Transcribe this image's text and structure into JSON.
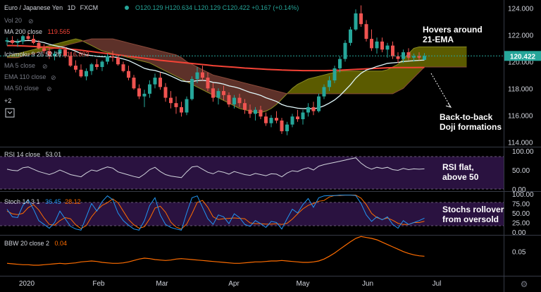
{
  "header": {
    "symbol": "Euro / Japanese Yen",
    "interval": "1D",
    "source": "FXCM",
    "ohlc": "O120.129 H120.634 L120.129 C120.422 +0.167 (+0.14%)"
  },
  "legend": {
    "vol": "Vol 20",
    "ma200_label": "MA 200 close",
    "ma200_value": "119.565",
    "ichimoku_label": "Ichimoku 9 26 52 26",
    "ichimoku_value": "116.893",
    "ma5": "MA 5 close",
    "ema110": "EMA 110 close",
    "ma50": "MA 50 close",
    "more": "+2"
  },
  "price_axis": {
    "ticks": [
      "124.000",
      "122.000",
      "120.000",
      "118.000",
      "116.000",
      "114.000"
    ],
    "last_price": "120.422"
  },
  "time_axis": [
    "2020",
    "Feb",
    "Mar",
    "Apr",
    "May",
    "Jun",
    "Jul"
  ],
  "annotations": {
    "hover_line1": "Hovers around",
    "hover_line2": "21-EMA",
    "doji_line1": "Back-to-back",
    "doji_line2": "Doji formations",
    "rsi_line1": "RSI flat,",
    "rsi_line2": "above 50",
    "stoch_line1": "Stochs rollover",
    "stoch_line2": "from oversold"
  },
  "rsi": {
    "label": "RSI 14 close",
    "value": "53.01",
    "ticks": [
      "100.00",
      "50.00",
      "0.00"
    ]
  },
  "stoch": {
    "label": "Stoch 14 3 1",
    "k": "36.45",
    "d": "28.12",
    "ticks": [
      "100.00",
      "75.00",
      "50.00",
      "25.00",
      "0.00"
    ]
  },
  "bbw": {
    "label": "BBW 20 close 2",
    "value": "0.04",
    "ticks": [
      "0.05"
    ]
  },
  "colors": {
    "up": "#26a69a",
    "down": "#ef5350",
    "ma200": "#f44336",
    "ema21": "#e0f7fa",
    "cloud_green": "#6b6b00",
    "cloud_red": "#6d3a30",
    "osc_band": "#2a1240",
    "rsi_line": "#d1d4dc",
    "stoch_k": "#2196f3",
    "stoch_d": "#ff6d00",
    "bbw_line": "#ff6d00"
  },
  "chart_data": {
    "type": "candlestick",
    "symbol": "Euro / Japanese Yen",
    "interval": "1D",
    "candles": [
      [
        121.5,
        121.8,
        121.2,
        121.6
      ],
      [
        121.6,
        121.9,
        121.3,
        121.4
      ],
      [
        121.4,
        121.7,
        121.1,
        121.5
      ],
      [
        121.5,
        122.0,
        121.3,
        121.9
      ],
      [
        121.9,
        122.2,
        121.6,
        121.7
      ],
      [
        121.7,
        122.0,
        121.3,
        121.4
      ],
      [
        121.4,
        121.6,
        120.9,
        121.0
      ],
      [
        121.0,
        121.3,
        120.6,
        120.8
      ],
      [
        120.8,
        121.1,
        120.2,
        120.4
      ],
      [
        120.4,
        120.8,
        120.1,
        120.6
      ],
      [
        120.6,
        121.0,
        120.3,
        120.9
      ],
      [
        120.9,
        121.1,
        120.3,
        120.4
      ],
      [
        120.4,
        120.7,
        119.6,
        119.7
      ],
      [
        119.7,
        120.1,
        119.2,
        119.4
      ],
      [
        119.4,
        119.8,
        118.8,
        118.9
      ],
      [
        118.9,
        119.5,
        118.6,
        119.3
      ],
      [
        119.3,
        119.9,
        119.0,
        119.8
      ],
      [
        119.8,
        120.2,
        119.4,
        119.6
      ],
      [
        119.6,
        120.1,
        119.3,
        120.0
      ],
      [
        120.0,
        120.6,
        119.8,
        120.4
      ],
      [
        120.4,
        120.8,
        120.0,
        120.3
      ],
      [
        120.3,
        120.5,
        119.7,
        119.8
      ],
      [
        119.8,
        120.0,
        119.2,
        119.3
      ],
      [
        119.3,
        119.7,
        118.6,
        118.8
      ],
      [
        118.8,
        119.0,
        117.9,
        118.0
      ],
      [
        118.0,
        118.3,
        117.2,
        117.4
      ],
      [
        117.4,
        117.9,
        116.6,
        117.6
      ],
      [
        117.6,
        118.6,
        117.3,
        118.3
      ],
      [
        118.3,
        119.1,
        118.0,
        118.8
      ],
      [
        118.8,
        119.2,
        117.9,
        118.1
      ],
      [
        118.1,
        118.4,
        117.0,
        117.3
      ],
      [
        117.3,
        117.8,
        116.5,
        116.9
      ],
      [
        116.9,
        117.4,
        116.1,
        116.6
      ],
      [
        116.6,
        117.0,
        115.9,
        116.2
      ],
      [
        116.2,
        117.4,
        116.0,
        117.2
      ],
      [
        117.2,
        118.9,
        117.1,
        118.7
      ],
      [
        118.7,
        119.6,
        118.4,
        119.2
      ],
      [
        119.2,
        119.7,
        118.6,
        118.8
      ],
      [
        118.8,
        119.2,
        117.8,
        118.0
      ],
      [
        118.0,
        118.4,
        117.0,
        117.3
      ],
      [
        117.3,
        118.0,
        116.8,
        117.8
      ],
      [
        117.8,
        118.2,
        117.1,
        117.5
      ],
      [
        117.5,
        117.7,
        116.6,
        116.8
      ],
      [
        116.8,
        117.5,
        116.5,
        117.3
      ],
      [
        117.3,
        117.6,
        116.6,
        116.9
      ],
      [
        116.9,
        117.2,
        116.1,
        116.4
      ],
      [
        116.4,
        116.8,
        115.8,
        116.1
      ],
      [
        116.1,
        116.6,
        115.6,
        116.4
      ],
      [
        116.4,
        116.7,
        115.7,
        115.9
      ],
      [
        115.9,
        116.2,
        115.2,
        115.4
      ],
      [
        115.4,
        116.0,
        115.1,
        115.8
      ],
      [
        115.8,
        116.3,
        115.4,
        115.6
      ],
      [
        115.6,
        115.8,
        114.6,
        114.8
      ],
      [
        114.8,
        115.5,
        114.5,
        115.3
      ],
      [
        115.3,
        116.1,
        115.1,
        115.9
      ],
      [
        115.9,
        116.4,
        115.5,
        115.7
      ],
      [
        115.7,
        116.4,
        115.3,
        116.2
      ],
      [
        116.2,
        116.9,
        115.9,
        116.6
      ],
      [
        116.6,
        117.0,
        116.0,
        116.3
      ],
      [
        116.3,
        117.6,
        116.2,
        117.4
      ],
      [
        117.4,
        118.3,
        117.2,
        118.1
      ],
      [
        118.1,
        118.9,
        117.8,
        118.6
      ],
      [
        118.6,
        119.7,
        118.4,
        119.5
      ],
      [
        119.5,
        120.4,
        119.2,
        120.2
      ],
      [
        120.2,
        121.6,
        120.0,
        121.4
      ],
      [
        121.4,
        122.6,
        121.2,
        122.4
      ],
      [
        122.4,
        123.9,
        122.3,
        123.6
      ],
      [
        123.6,
        124.2,
        122.6,
        122.8
      ],
      [
        122.8,
        123.1,
        121.5,
        121.7
      ],
      [
        121.7,
        122.4,
        120.8,
        121.0
      ],
      [
        121.0,
        121.8,
        120.6,
        121.5
      ],
      [
        121.5,
        121.8,
        120.7,
        120.9
      ],
      [
        120.9,
        121.4,
        120.3,
        121.2
      ],
      [
        121.2,
        121.5,
        120.2,
        120.4
      ],
      [
        120.4,
        120.7,
        119.9,
        120.2
      ],
      [
        120.2,
        120.9,
        119.9,
        120.7
      ],
      [
        120.7,
        121.0,
        120.1,
        120.3
      ],
      [
        120.3,
        120.6,
        120.0,
        120.4
      ],
      [
        120.4,
        120.7,
        120.1,
        120.3
      ],
      [
        120.129,
        120.634,
        120.129,
        120.422
      ]
    ],
    "ema21": [
      121.5,
      121.5,
      121.5,
      121.55,
      121.58,
      121.56,
      121.5,
      121.42,
      121.3,
      121.2,
      121.12,
      121.05,
      120.92,
      120.78,
      120.6,
      120.5,
      120.45,
      120.4,
      120.36,
      120.36,
      120.35,
      120.3,
      120.2,
      120.08,
      119.9,
      119.7,
      119.5,
      119.4,
      119.34,
      119.22,
      119.1,
      118.93,
      118.75,
      118.56,
      118.5,
      118.52,
      118.58,
      118.6,
      118.56,
      118.45,
      118.4,
      118.32,
      118.19,
      118.11,
      118.0,
      117.85,
      117.7,
      117.6,
      117.48,
      117.3,
      117.17,
      117.03,
      116.8,
      116.67,
      116.6,
      116.52,
      116.49,
      116.5,
      116.47,
      116.56,
      116.7,
      116.9,
      117.14,
      117.46,
      117.86,
      118.27,
      118.76,
      119.13,
      119.37,
      119.49,
      119.64,
      119.75,
      119.87,
      119.91,
      119.94,
      120.01,
      120.04,
      120.07,
      120.09,
      120.12
    ],
    "ma200": [
      121.2,
      121.2,
      121.18,
      121.17,
      121.15,
      121.13,
      121.1,
      121.08,
      121.05,
      121.02,
      121.0,
      120.97,
      120.93,
      120.9,
      120.85,
      120.8,
      120.75,
      120.7,
      120.65,
      120.6,
      120.55,
      120.5,
      120.45,
      120.4,
      120.35,
      120.3,
      120.25,
      120.2,
      120.15,
      120.1,
      120.06,
      120.02,
      119.98,
      119.94,
      119.9,
      119.86,
      119.82,
      119.78,
      119.74,
      119.7,
      119.67,
      119.64,
      119.61,
      119.58,
      119.55,
      119.52,
      119.5,
      119.47,
      119.45,
      119.43,
      119.41,
      119.39,
      119.37,
      119.36,
      119.35,
      119.34,
      119.33,
      119.33,
      119.33,
      119.33,
      119.33,
      119.34,
      119.35,
      119.36,
      119.38,
      119.4,
      119.42,
      119.44,
      119.46,
      119.48,
      119.5,
      119.52,
      119.54,
      119.55,
      119.56,
      119.56,
      119.56,
      119.56,
      119.565,
      119.565
    ],
    "cloud": {
      "span_a": [
        120.4,
        120.5,
        120.6,
        120.7,
        120.8,
        120.9,
        121.0,
        121.1,
        121.2,
        121.3,
        121.4,
        121.5,
        121.6,
        121.7,
        121.6,
        121.4,
        121.2,
        121.0,
        120.8,
        120.7,
        120.6,
        120.5,
        120.4,
        120.3,
        120.2,
        120.1,
        120.0,
        119.9,
        119.7,
        119.5,
        119.3,
        119.1,
        118.9,
        118.7,
        118.5,
        118.3,
        118.1,
        117.9,
        117.7,
        117.5,
        117.3,
        117.1,
        116.9,
        116.7,
        116.5,
        116.4,
        116.3,
        116.2,
        116.2,
        116.3,
        116.5,
        116.8,
        117.2,
        117.6,
        118.0,
        118.3,
        118.5,
        118.7,
        118.8,
        118.9,
        119.0,
        119.1,
        119.2,
        119.3,
        119.3,
        119.3,
        119.3,
        119.3,
        119.3,
        119.3,
        119.3,
        119.3,
        119.4,
        119.6,
        119.8,
        120.2,
        120.6,
        121.0,
        121.1,
        121.1,
        121.1,
        121.1,
        121.1,
        121.1,
        121.1,
        121.1,
        121.1,
        121.1
      ],
      "span_b": [
        120.3,
        120.3,
        120.3,
        120.4,
        120.5,
        120.6,
        120.7,
        120.8,
        120.9,
        121.0,
        121.1,
        121.2,
        121.3,
        121.4,
        121.5,
        121.6,
        121.7,
        121.7,
        121.7,
        121.7,
        121.7,
        121.6,
        121.5,
        121.4,
        121.3,
        121.2,
        121.1,
        121.0,
        120.9,
        120.8,
        120.7,
        120.6,
        120.5,
        120.3,
        120.0,
        119.8,
        119.6,
        119.4,
        119.2,
        119.0,
        118.9,
        118.8,
        118.7,
        118.6,
        118.5,
        118.4,
        118.3,
        118.2,
        118.1,
        118.0,
        117.9,
        117.8,
        117.7,
        117.6,
        117.6,
        117.6,
        117.6,
        117.6,
        117.6,
        117.6,
        117.6,
        117.6,
        117.6,
        117.6,
        117.6,
        117.6,
        117.6,
        117.6,
        117.6,
        117.6,
        117.6,
        117.6,
        117.6,
        117.6,
        117.8,
        118.0,
        118.4,
        118.8,
        119.2,
        119.6,
        119.6,
        119.6,
        119.6,
        119.6,
        119.6,
        119.6,
        119.6,
        119.6
      ]
    },
    "rsi": [
      52,
      49,
      48,
      56,
      58,
      52,
      46,
      42,
      38,
      43,
      50,
      44,
      38,
      35,
      32,
      42,
      50,
      47,
      53,
      58,
      55,
      45,
      41,
      37,
      33,
      30,
      39,
      51,
      57,
      46,
      38,
      34,
      32,
      30,
      45,
      58,
      60,
      52,
      44,
      40,
      47,
      44,
      39,
      46,
      42,
      38,
      36,
      41,
      38,
      35,
      40,
      39,
      32,
      42,
      48,
      46,
      52,
      56,
      50,
      60,
      64,
      67,
      70,
      73,
      76,
      79,
      82,
      68,
      58,
      52,
      57,
      54,
      57,
      51,
      49,
      54,
      51,
      53,
      52,
      53.01
    ],
    "stoch_k": [
      60,
      40,
      38,
      70,
      85,
      60,
      30,
      20,
      10,
      25,
      55,
      35,
      15,
      8,
      5,
      40,
      75,
      55,
      80,
      95,
      85,
      50,
      30,
      18,
      8,
      5,
      30,
      70,
      90,
      45,
      20,
      12,
      8,
      5,
      50,
      90,
      95,
      65,
      35,
      20,
      45,
      40,
      22,
      48,
      38,
      20,
      15,
      30,
      22,
      12,
      28,
      25,
      8,
      35,
      60,
      50,
      72,
      88,
      65,
      90,
      95,
      96,
      96,
      97,
      97,
      97,
      96,
      75,
      45,
      28,
      40,
      32,
      40,
      20,
      10,
      30,
      20,
      25,
      30,
      36.45
    ],
    "stoch_d": [
      55,
      48,
      46,
      49,
      64,
      72,
      58,
      37,
      20,
      18,
      30,
      38,
      35,
      19,
      9,
      17,
      40,
      57,
      70,
      77,
      87,
      77,
      55,
      33,
      19,
      10,
      14,
      35,
      63,
      68,
      52,
      26,
      13,
      8,
      21,
      48,
      78,
      83,
      65,
      40,
      33,
      35,
      36,
      37,
      36,
      35,
      24,
      22,
      22,
      21,
      21,
      22,
      20,
      23,
      34,
      48,
      61,
      70,
      75,
      81,
      83,
      92,
      96,
      96,
      97,
      97,
      97,
      89,
      72,
      49,
      38,
      33,
      37,
      31,
      23,
      20,
      20,
      25,
      25,
      28.12
    ],
    "bbw": [
      0.025,
      0.024,
      0.023,
      0.022,
      0.022,
      0.021,
      0.021,
      0.022,
      0.023,
      0.024,
      0.025,
      0.024,
      0.025,
      0.026,
      0.028,
      0.029,
      0.03,
      0.029,
      0.027,
      0.026,
      0.025,
      0.025,
      0.026,
      0.028,
      0.031,
      0.034,
      0.036,
      0.035,
      0.033,
      0.032,
      0.031,
      0.032,
      0.034,
      0.035,
      0.034,
      0.033,
      0.032,
      0.031,
      0.03,
      0.029,
      0.028,
      0.027,
      0.026,
      0.025,
      0.025,
      0.026,
      0.027,
      0.028,
      0.028,
      0.029,
      0.03,
      0.03,
      0.031,
      0.03,
      0.029,
      0.028,
      0.027,
      0.027,
      0.028,
      0.03,
      0.034,
      0.04,
      0.047,
      0.055,
      0.063,
      0.071,
      0.078,
      0.082,
      0.08,
      0.078,
      0.075,
      0.07,
      0.065,
      0.06,
      0.055,
      0.05,
      0.046,
      0.043,
      0.041,
      0.04
    ],
    "ylim": [
      113.7,
      124.6
    ]
  }
}
